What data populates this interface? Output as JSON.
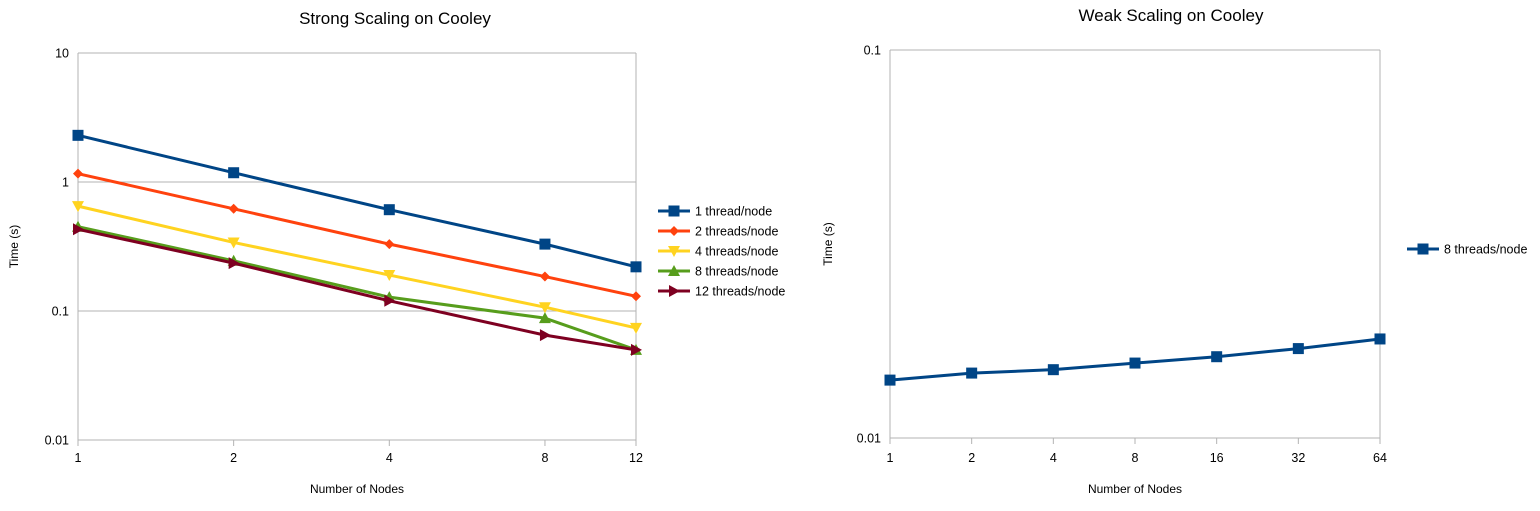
{
  "chart_data": [
    {
      "type": "line",
      "title": "Strong Scaling on Cooley",
      "xlabel": "Number of Nodes",
      "ylabel": "Time (s)",
      "yscale": "log",
      "xscale": "log",
      "ylim": [
        0.01,
        10
      ],
      "grid": true,
      "legend": "right",
      "x": [
        1,
        2,
        4,
        8,
        12
      ],
      "x_ticks": [
        "1",
        "2",
        "4",
        "8",
        "12"
      ],
      "y_ticks": [
        "10",
        "1",
        "0.1",
        "0.01"
      ],
      "series": [
        {
          "name": "1 thread/node",
          "color": "#004586",
          "marker": "square",
          "values": [
            2.3,
            1.18,
            0.61,
            0.33,
            0.22
          ]
        },
        {
          "name": "2 threads/node",
          "color": "#ff420e",
          "marker": "diamond",
          "values": [
            1.16,
            0.62,
            0.33,
            0.185,
            0.13
          ]
        },
        {
          "name": "4 threads/node",
          "color": "#ffd320",
          "marker": "triangle-down",
          "values": [
            0.65,
            0.34,
            0.19,
            0.107,
            0.074
          ]
        },
        {
          "name": "8 threads/node",
          "color": "#579d1c",
          "marker": "triangle-up",
          "values": [
            0.45,
            0.245,
            0.128,
            0.088,
            0.05
          ]
        },
        {
          "name": "12 threads/node",
          "color": "#7e0021",
          "marker": "triangle-right",
          "values": [
            0.43,
            0.235,
            0.12,
            0.065,
            0.05
          ]
        }
      ]
    },
    {
      "type": "line",
      "title": "Weak Scaling on Cooley",
      "xlabel": "Number of Nodes",
      "ylabel": "Time (s)",
      "yscale": "log",
      "xscale": "log",
      "ylim": [
        0.01,
        0.1
      ],
      "grid": true,
      "legend": "right",
      "x": [
        1,
        2,
        4,
        8,
        16,
        32,
        64
      ],
      "x_ticks": [
        "1",
        "2",
        "4",
        "8",
        "16",
        "32",
        "64"
      ],
      "y_ticks": [
        "0.1",
        "0.01"
      ],
      "series": [
        {
          "name": "8 threads/node",
          "color": "#004586",
          "marker": "square",
          "values": [
            0.0141,
            0.0147,
            0.015,
            0.0156,
            0.0162,
            0.017,
            0.018
          ]
        }
      ]
    }
  ]
}
